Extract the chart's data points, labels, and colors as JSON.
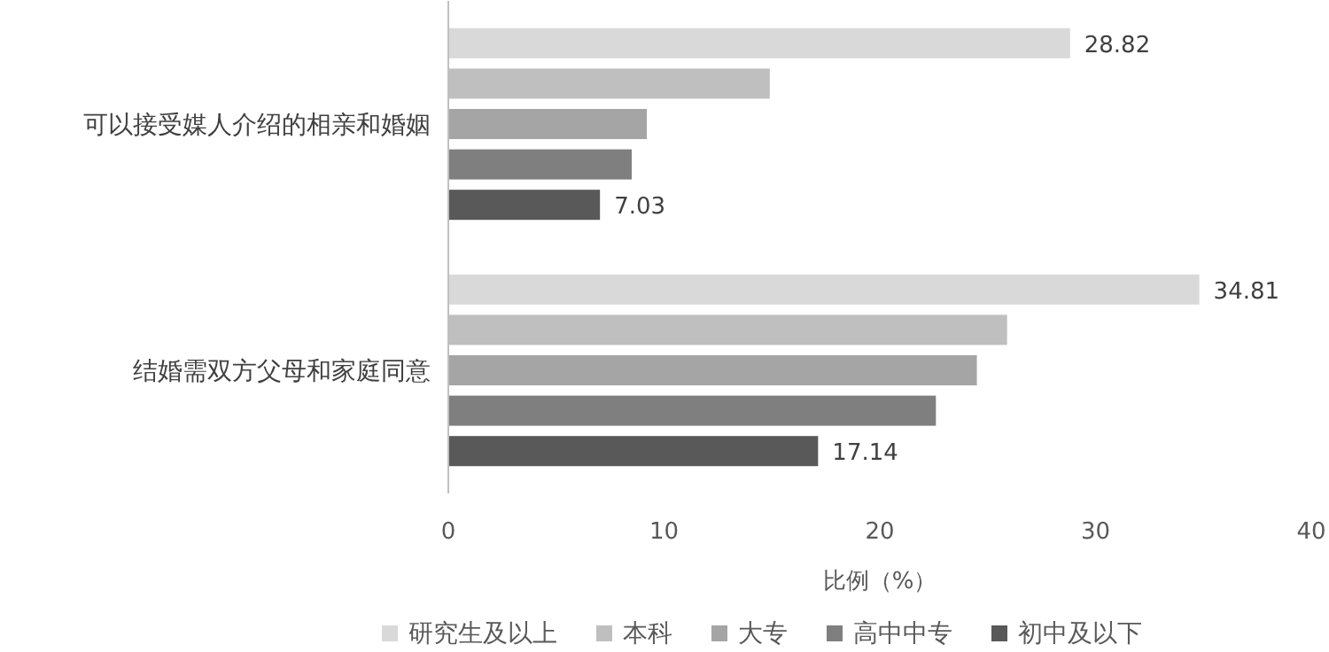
{
  "chart_data": {
    "type": "bar",
    "orientation": "horizontal",
    "categories": [
      "可以接受媒人介绍的相亲和婚姻",
      "结婚需双方父母和家庭同意"
    ],
    "xlabel": "比例（%）",
    "xlim": [
      0,
      40
    ],
    "xticks": [
      0,
      10,
      20,
      30,
      40
    ],
    "grid": false,
    "legend": "bottom",
    "series": [
      {
        "name": "研究生及以上",
        "color": "#d9d9d9",
        "values": [
          28.82,
          34.81
        ],
        "value_labels": [
          "28.82",
          "34.81"
        ]
      },
      {
        "name": "本科",
        "color": "#bfbfbf",
        "values": [
          14.9,
          25.9
        ],
        "value_labels": [
          null,
          null
        ]
      },
      {
        "name": "大专",
        "color": "#a5a5a5",
        "values": [
          9.2,
          24.5
        ],
        "value_labels": [
          null,
          null
        ]
      },
      {
        "name": "高中中专",
        "color": "#7f7f7f",
        "values": [
          8.5,
          22.6
        ],
        "value_labels": [
          null,
          null
        ]
      },
      {
        "name": "初中及以下",
        "color": "#595959",
        "values": [
          7.03,
          17.14
        ],
        "value_labels": [
          "7.03",
          "17.14"
        ]
      }
    ]
  }
}
